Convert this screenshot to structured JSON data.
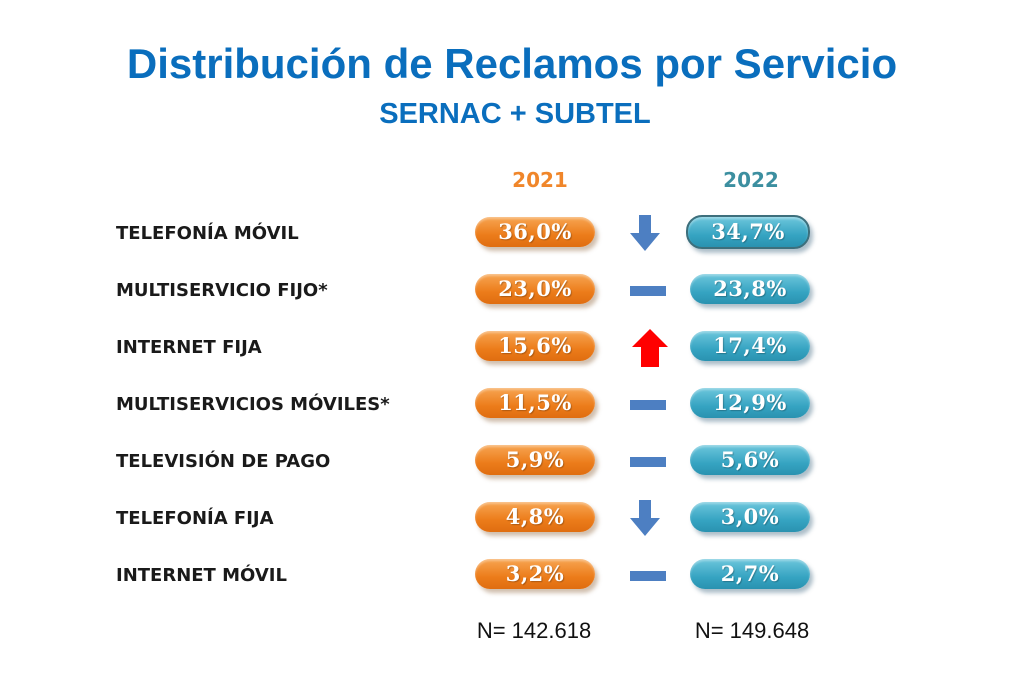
{
  "title": "Distribución de Reclamos por Servicio",
  "subtitle": "SERNAC + SUBTEL",
  "colors": {
    "title": "#0a6ebd",
    "pill_2021": "#ec7c1a",
    "pill_2022": "#36a4c2",
    "arrow_down": "#4d7fc2",
    "arrow_up": "#ff0000",
    "dash": "#4d7fc2"
  },
  "chart_data": {
    "type": "table",
    "title": "Distribución de Reclamos por Servicio",
    "subtitle": "SERNAC + SUBTEL",
    "columns": [
      "2021",
      "2022"
    ],
    "rows": [
      {
        "label": "TELEFONÍA MÓVIL",
        "v2021": "36,0%",
        "v2022": "34,7%",
        "trend": "down",
        "highlight": true
      },
      {
        "label": "MULTISERVICIO FIJO*",
        "v2021": "23,0%",
        "v2022": "23,8%",
        "trend": "flat"
      },
      {
        "label": "INTERNET FIJA",
        "v2021": "15,6%",
        "v2022": "17,4%",
        "trend": "up"
      },
      {
        "label": "MULTISERVICIOS MÓVILES*",
        "v2021": "11,5%",
        "v2022": "12,9%",
        "trend": "flat"
      },
      {
        "label": "TELEVISIÓN DE PAGO",
        "v2021": "5,9%",
        "v2022": "5,6%",
        "trend": "flat"
      },
      {
        "label": "TELEFONÍA FIJA",
        "v2021": "4,8%",
        "v2022": "3,0%",
        "trend": "down"
      },
      {
        "label": "INTERNET MÓVIL",
        "v2021": "3,2%",
        "v2022": "2,7%",
        "trend": "flat"
      }
    ],
    "totals": {
      "n2021": "N= 142.618",
      "n2022": "N= 149.648"
    }
  }
}
